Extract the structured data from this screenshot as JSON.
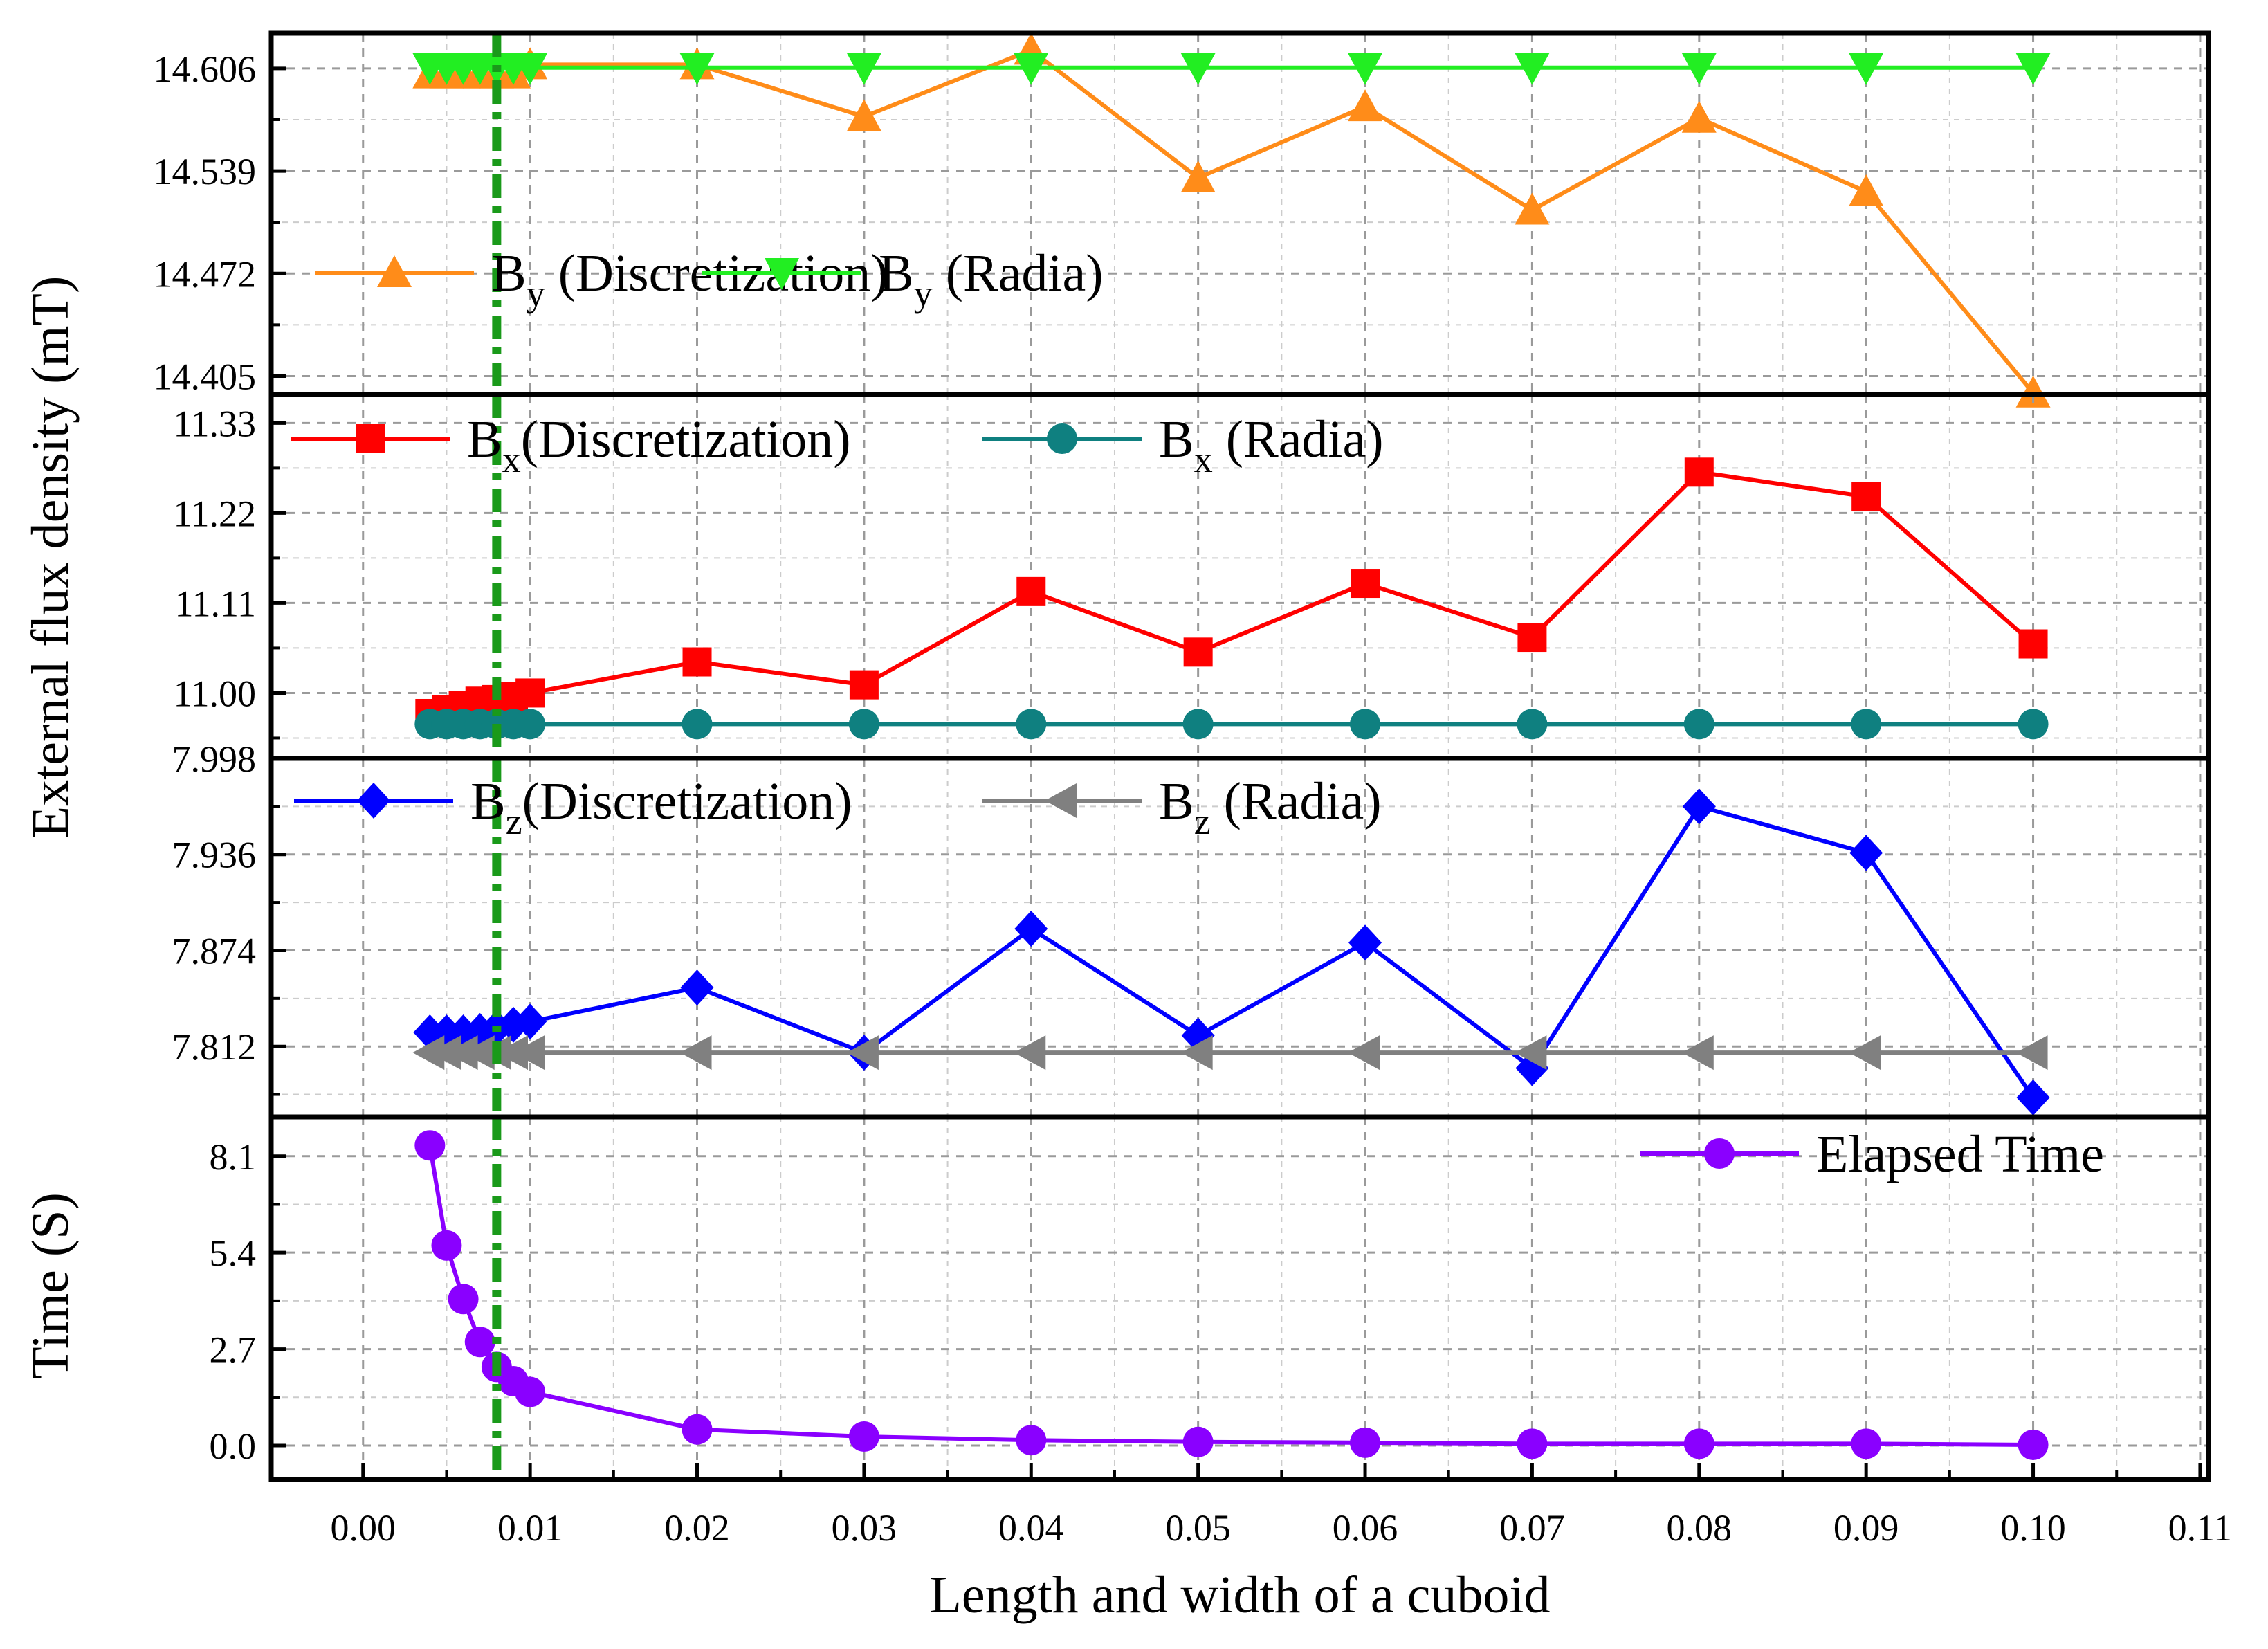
{
  "chart_data": {
    "type": "line",
    "xlabel": "Length and width of a cuboid",
    "ylabel_top": "External flux density (mT)",
    "x_ticks": [
      "0.00",
      "0.01",
      "0.02",
      "0.03",
      "0.04",
      "0.05",
      "0.06",
      "0.07",
      "0.08",
      "0.09",
      "0.10",
      "0.11"
    ],
    "xlim": [
      -0.0055,
      0.1105
    ],
    "x": [
      0.004,
      0.005,
      0.006,
      0.007,
      0.008,
      0.009,
      0.01,
      0.02,
      0.03,
      0.04,
      0.05,
      0.06,
      0.07,
      0.08,
      0.09,
      0.1
    ],
    "marker_line": {
      "x": 0.008,
      "color": "#1a9a1a"
    },
    "panels": [
      {
        "id": "by",
        "ylim": [
          14.393,
          14.629
        ],
        "yticks": [
          14.405,
          14.472,
          14.539,
          14.606
        ],
        "ytick_labels": [
          "14.405",
          "14.472",
          "14.539",
          "14.606"
        ],
        "series": [
          {
            "name": "By (Discretization)",
            "legend_main": "B",
            "legend_sub": "y",
            "legend_rest": " (Discretization)",
            "color": "#ff8c19",
            "marker": "triangle-up",
            "values": [
              14.6025,
              14.6025,
              14.6025,
              14.6025,
              14.6025,
              14.6025,
              14.6085,
              14.6085,
              14.5745,
              14.618,
              14.5345,
              14.581,
              14.5135,
              14.5735,
              14.5255,
              14.394
            ]
          },
          {
            "name": "By (Radia)",
            "legend_main": "B",
            "legend_sub": "y",
            "legend_rest": " (Radia)",
            "color": "#22ee22",
            "marker": "triangle-down",
            "values": [
              14.6065,
              14.6065,
              14.6065,
              14.6065,
              14.6065,
              14.6065,
              14.6065,
              14.6065,
              14.6065,
              14.6065,
              14.6065,
              14.6065,
              14.6065,
              14.6065,
              14.6065,
              14.6065
            ]
          }
        ]
      },
      {
        "id": "bx",
        "ylim": [
          10.92,
          11.365
        ],
        "yticks": [
          11.0,
          11.11,
          11.22,
          11.33
        ],
        "ytick_labels": [
          "11.00",
          "11.11",
          "11.22",
          "11.33"
        ],
        "series": [
          {
            "name": "Bx(Discretization)",
            "legend_main": "B",
            "legend_sub": "x",
            "legend_rest": "(Discretization)",
            "color": "#ff0000",
            "marker": "square",
            "values": [
              10.975,
              10.98,
              10.985,
              10.99,
              10.992,
              10.996,
              11.0,
              11.038,
              11.01,
              11.124,
              11.05,
              11.134,
              11.068,
              11.27,
              11.24,
              11.06
            ]
          },
          {
            "name": "Bx (Radia)",
            "legend_main": "B",
            "legend_sub": "x",
            "legend_rest": " (Radia)",
            "color": "#0f8080",
            "marker": "circle",
            "values": [
              10.962,
              10.962,
              10.962,
              10.962,
              10.962,
              10.962,
              10.962,
              10.962,
              10.962,
              10.962,
              10.962,
              10.962,
              10.962,
              10.962,
              10.962,
              10.962
            ]
          }
        ]
      },
      {
        "id": "bz",
        "ylim": [
          7.7665,
          7.998
        ],
        "yticks": [
          7.812,
          7.874,
          7.936,
          7.998
        ],
        "ytick_labels": [
          "7.812",
          "7.874",
          "7.936",
          "7.998"
        ],
        "series": [
          {
            "name": "Bz(Discretization)",
            "legend_main": "B",
            "legend_sub": "z",
            "legend_rest": "(Discretization)",
            "color": "#0000ff",
            "marker": "diamond",
            "values": [
              7.821,
              7.821,
              7.821,
              7.822,
              7.824,
              7.826,
              7.828,
              7.85,
              7.808,
              7.888,
              7.819,
              7.879,
              7.798,
              7.967,
              7.937,
              7.779
            ]
          },
          {
            "name": "Bz (Radia)",
            "legend_main": "B",
            "legend_sub": "z",
            "legend_rest": " (Radia)",
            "color": "#808080",
            "marker": "triangle-left",
            "values": [
              7.808,
              7.808,
              7.808,
              7.808,
              7.808,
              7.808,
              7.808,
              7.808,
              7.808,
              7.808,
              7.808,
              7.808,
              7.808,
              7.808,
              7.808,
              7.808
            ]
          }
        ]
      },
      {
        "id": "time",
        "ylabel": "Time (S)",
        "ylim": [
          -0.95,
          9.2
        ],
        "yticks": [
          0.0,
          2.7,
          5.4,
          8.1
        ],
        "ytick_labels": [
          "0.0",
          "2.7",
          "5.4",
          "8.1"
        ],
        "series": [
          {
            "name": "Elapsed Time",
            "legend_main": "Elapsed Time",
            "legend_sub": "",
            "legend_rest": "",
            "color": "#8a00ff",
            "marker": "circle",
            "values": [
              8.4,
              5.6,
              4.1,
              2.9,
              2.2,
              1.8,
              1.5,
              0.45,
              0.25,
              0.15,
              0.1,
              0.08,
              0.05,
              0.05,
              0.05,
              0.02
            ]
          }
        ]
      }
    ]
  }
}
